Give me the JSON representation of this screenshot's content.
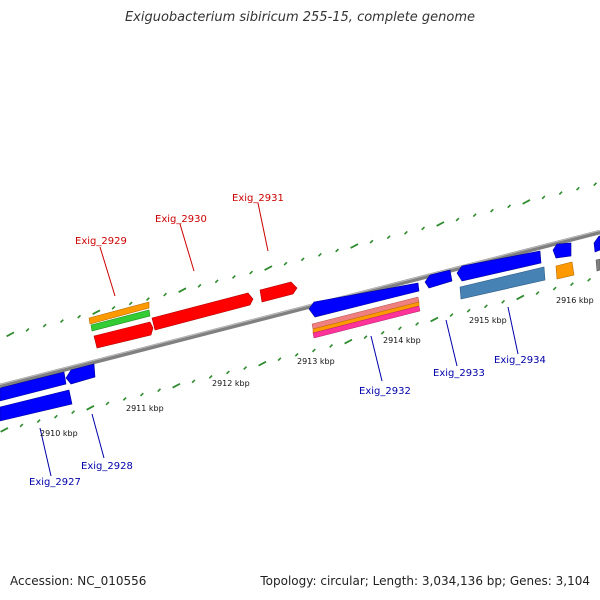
{
  "title": "Exiguobacterium sibiricum 255-15, complete genome",
  "footer": {
    "accession": "Accession: NC_010556",
    "summary": "Topology: circular; Length: 3,034,136 bp; Genes: 3,104"
  },
  "colors": {
    "backbone": "#808080",
    "tick": "#2e8b2e",
    "forward_label": "#cc0000",
    "reverse_label": "#0000aa",
    "forward_gene": "#ff0000",
    "reverse_gene": "#0000ff",
    "orange": "#ff9900",
    "green": "#33cc33",
    "steel": "#4682b4",
    "pink": "#ff3399",
    "grey": "#808080"
  },
  "kbp_labels": [
    "2910 kbp",
    "2911 kbp",
    "2912 kbp",
    "2913 kbp",
    "2914 kbp",
    "2915 kbp",
    "2916 kbp"
  ],
  "gene_labels": {
    "forward": [
      "Exig_2929",
      "Exig_2930",
      "Exig_2931"
    ],
    "reverse": [
      "Exig_2927",
      "Exig_2928",
      "Exig_2932",
      "Exig_2933",
      "Exig_2934"
    ]
  }
}
